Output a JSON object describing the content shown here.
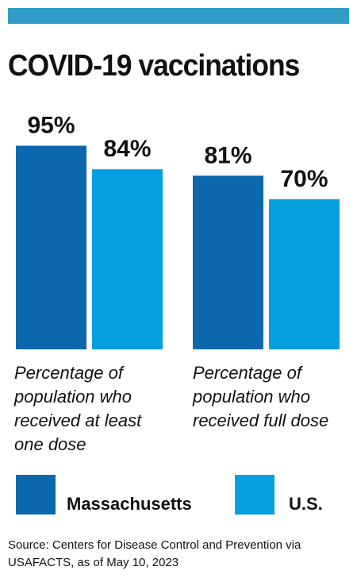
{
  "header": {
    "title": "COVID-19 vaccinations"
  },
  "chart_data": {
    "type": "bar",
    "categories": [
      "Percentage of population who received at least one dose",
      "Percentage of population who received full dose"
    ],
    "series": [
      {
        "name": "Massachusetts",
        "values": [
          95,
          81
        ],
        "color": "#0d67ad"
      },
      {
        "name": "U.S.",
        "values": [
          84,
          70
        ],
        "color": "#069fe0"
      }
    ],
    "value_labels": [
      [
        "95%",
        "81%"
      ],
      [
        "84%",
        "70%"
      ]
    ],
    "ylim": [
      0,
      100
    ],
    "grid": false,
    "legend_position": "bottom"
  },
  "legend": {
    "massachusetts": "Massachusetts",
    "us": "U.S."
  },
  "footer": {
    "source": "Source: Centers for Disease Control and Prevention via USAFACTS, as of May 10, 2023"
  }
}
